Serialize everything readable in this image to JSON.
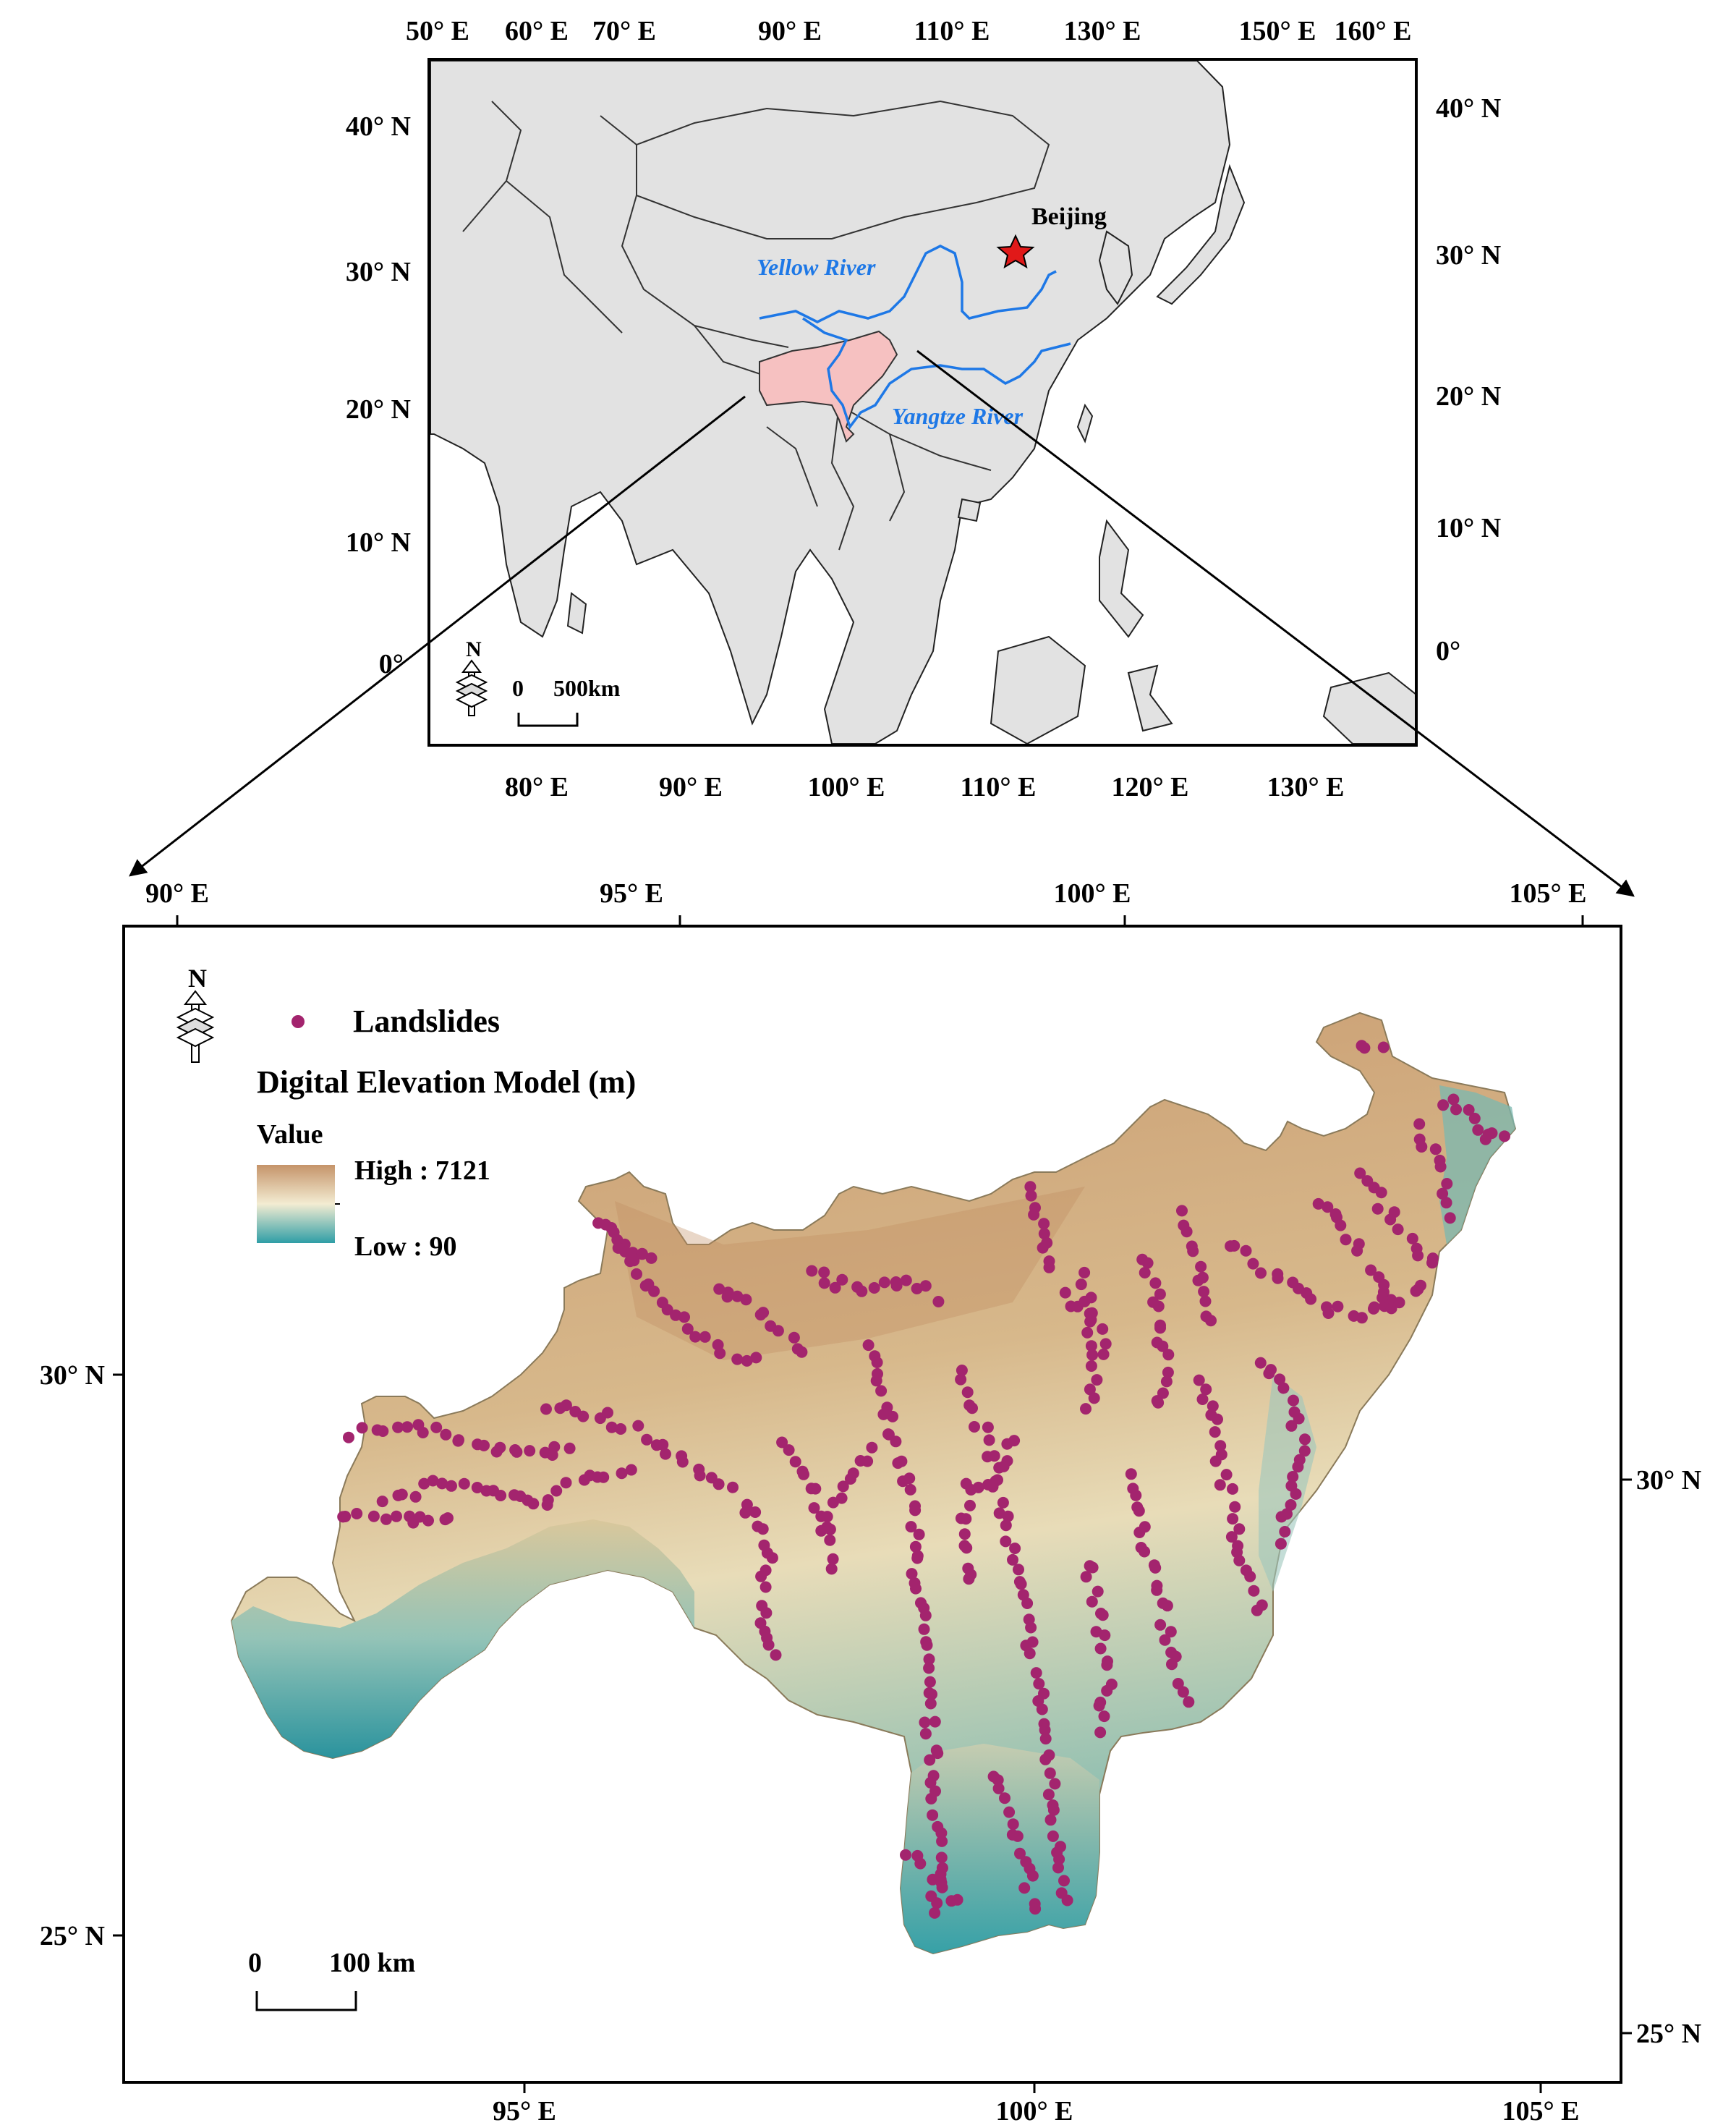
{
  "inset_map": {
    "top_ticks": [
      "50° E",
      "60° E",
      "70° E",
      "90° E",
      "110° E",
      "130° E",
      "150° E",
      "160° E"
    ],
    "bottom_ticks": [
      "80° E",
      "90° E",
      "100° E",
      "110° E",
      "120° E",
      "130° E"
    ],
    "left_ticks": [
      "40° N",
      "30° N",
      "20° N",
      "10° N",
      "0°"
    ],
    "right_ticks": [
      "40° N",
      "30° N",
      "20° N",
      "10° N",
      "0°"
    ],
    "labels": {
      "capital": "Beijing",
      "river_1": "Yellow River",
      "river_2": "Yangtze River"
    },
    "scale_bar": {
      "zero": "0",
      "distance": "500km"
    },
    "north_arrow": "N",
    "colors": {
      "land": "#e2e2e2",
      "study_area": "#f6c1c1",
      "river": "#1e78e6",
      "star": "#e11919"
    }
  },
  "main_map": {
    "top_ticks": [
      "90° E",
      "95° E",
      "100° E",
      "105° E"
    ],
    "bottom_ticks": [
      "95° E",
      "100° E",
      "105° E"
    ],
    "left_ticks": [
      "30° N",
      "25° N"
    ],
    "right_ticks": [
      "30° N",
      "25° N"
    ],
    "north_arrow": "N",
    "legend": {
      "points_label": "Landslides",
      "dem_title": "Digital Elevation Model (m)",
      "value_label": "Value",
      "high": "High : 7121",
      "low": "Low : 90"
    },
    "scale_bar": {
      "zero": "0",
      "distance": "100 km"
    },
    "colors": {
      "landslide": "#a3246e",
      "dem_high": "#c5946a",
      "dem_mid": "#f3ecd2",
      "dem_low": "#2f9ea6"
    }
  }
}
